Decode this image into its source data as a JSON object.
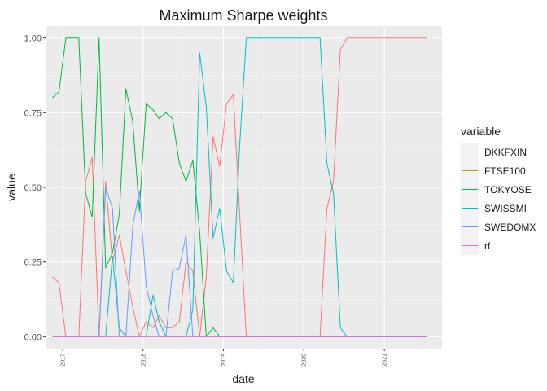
{
  "chart_data": {
    "type": "line",
    "title": "Maximum Sharpe weights",
    "xlabel": "date",
    "ylabel": "value",
    "xlim": [
      "2016-10-15",
      "2021-09-20"
    ],
    "ylim": [
      -0.04,
      1.04
    ],
    "x_ticks": [
      {
        "date": "2017-01-01",
        "label": "2017"
      },
      {
        "date": "2018-01-01",
        "label": "2018"
      },
      {
        "date": "2019-01-01",
        "label": "2019"
      },
      {
        "date": "2020-01-01",
        "label": "2020"
      },
      {
        "date": "2021-01-01",
        "label": "2021"
      }
    ],
    "y_ticks": [
      {
        "value": 0,
        "label": "0.00"
      },
      {
        "value": 0.25,
        "label": "0.25"
      },
      {
        "value": 0.5,
        "label": "0.50"
      },
      {
        "value": 0.75,
        "label": "0.75"
      },
      {
        "value": 1,
        "label": "1.00"
      }
    ],
    "grid": true,
    "panel_background": "#ebebeb",
    "legend": {
      "title": "variable",
      "placement": "right"
    },
    "series": [
      {
        "name": "DKKFXIN",
        "color": "#F8766D",
        "points": [
          [
            "2016-11-15",
            0.2
          ],
          [
            "2016-12-15",
            0.18
          ],
          [
            "2017-01-15",
            0.0
          ],
          [
            "2017-02-15",
            0.0
          ],
          [
            "2017-03-15",
            0.0
          ],
          [
            "2017-04-15",
            0.52
          ],
          [
            "2017-05-15",
            0.6
          ],
          [
            "2017-06-15",
            0.0
          ],
          [
            "2017-07-15",
            0.52
          ],
          [
            "2017-08-15",
            0.25
          ],
          [
            "2017-09-15",
            0.34
          ],
          [
            "2017-10-15",
            0.22
          ],
          [
            "2017-11-15",
            0.1
          ],
          [
            "2017-12-15",
            0.0
          ],
          [
            "2018-01-15",
            0.05
          ],
          [
            "2018-02-15",
            0.03
          ],
          [
            "2018-03-15",
            0.07
          ],
          [
            "2018-04-15",
            0.03
          ],
          [
            "2018-05-15",
            0.03
          ],
          [
            "2018-06-15",
            0.05
          ],
          [
            "2018-07-15",
            0.25
          ],
          [
            "2018-08-15",
            0.22
          ],
          [
            "2018-09-15",
            0.0
          ],
          [
            "2018-10-15",
            0.2
          ],
          [
            "2018-11-15",
            0.67
          ],
          [
            "2018-12-15",
            0.57
          ],
          [
            "2019-01-15",
            0.78
          ],
          [
            "2019-02-15",
            0.81
          ],
          [
            "2019-03-15",
            0.42
          ],
          [
            "2019-04-15",
            0.0
          ],
          [
            "2019-05-15",
            0.0
          ],
          [
            "2020-01-15",
            0.0
          ],
          [
            "2020-03-15",
            0.0
          ],
          [
            "2020-04-15",
            0.43
          ],
          [
            "2020-05-15",
            0.52
          ],
          [
            "2020-06-15",
            0.96
          ],
          [
            "2020-07-15",
            1.0
          ],
          [
            "2021-07-15",
            1.0
          ]
        ]
      },
      {
        "name": "FTSE100",
        "color": "#B79F00",
        "points": [
          [
            "2016-11-15",
            0.0
          ],
          [
            "2021-07-15",
            0.0
          ]
        ]
      },
      {
        "name": "TOKYOSE",
        "color": "#00BA38",
        "points": [
          [
            "2016-11-15",
            0.8
          ],
          [
            "2016-12-15",
            0.82
          ],
          [
            "2017-01-15",
            1.0
          ],
          [
            "2017-02-15",
            1.0
          ],
          [
            "2017-03-15",
            1.0
          ],
          [
            "2017-04-15",
            0.48
          ],
          [
            "2017-05-15",
            0.4
          ],
          [
            "2017-06-15",
            1.0
          ],
          [
            "2017-07-15",
            0.23
          ],
          [
            "2017-08-15",
            0.28
          ],
          [
            "2017-09-15",
            0.41
          ],
          [
            "2017-10-15",
            0.83
          ],
          [
            "2017-11-15",
            0.72
          ],
          [
            "2017-12-15",
            0.42
          ],
          [
            "2018-01-15",
            0.78
          ],
          [
            "2018-02-15",
            0.76
          ],
          [
            "2018-03-15",
            0.73
          ],
          [
            "2018-04-15",
            0.75
          ],
          [
            "2018-05-15",
            0.73
          ],
          [
            "2018-06-15",
            0.58
          ],
          [
            "2018-07-15",
            0.52
          ],
          [
            "2018-08-15",
            0.59
          ],
          [
            "2018-09-15",
            0.35
          ],
          [
            "2018-10-15",
            0.0
          ],
          [
            "2018-11-15",
            0.03
          ],
          [
            "2018-12-15",
            0.0
          ],
          [
            "2021-07-15",
            0.0
          ]
        ]
      },
      {
        "name": "SWISSMI",
        "color": "#00BFC4",
        "points": [
          [
            "2016-11-15",
            0.0
          ],
          [
            "2017-07-15",
            0.0
          ],
          [
            "2017-08-15",
            0.27
          ],
          [
            "2017-09-15",
            0.03
          ],
          [
            "2017-10-15",
            0.0
          ],
          [
            "2018-01-15",
            0.0
          ],
          [
            "2018-02-15",
            0.14
          ],
          [
            "2018-03-15",
            0.05
          ],
          [
            "2018-04-15",
            0.0
          ],
          [
            "2018-07-15",
            0.0
          ],
          [
            "2018-08-15",
            0.09
          ],
          [
            "2018-09-15",
            0.95
          ],
          [
            "2018-10-15",
            0.77
          ],
          [
            "2018-11-15",
            0.33
          ],
          [
            "2018-12-15",
            0.43
          ],
          [
            "2019-01-15",
            0.22
          ],
          [
            "2019-02-15",
            0.18
          ],
          [
            "2019-03-15",
            0.63
          ],
          [
            "2019-04-15",
            1.0
          ],
          [
            "2020-03-15",
            1.0
          ],
          [
            "2020-04-15",
            0.58
          ],
          [
            "2020-05-15",
            0.48
          ],
          [
            "2020-06-15",
            0.03
          ],
          [
            "2020-07-15",
            0.0
          ],
          [
            "2021-07-15",
            0.0
          ]
        ]
      },
      {
        "name": "SWEDOMX",
        "color": "#619CFF",
        "points": [
          [
            "2016-11-15",
            0.0
          ],
          [
            "2017-06-15",
            0.0
          ],
          [
            "2017-07-15",
            0.5
          ],
          [
            "2017-08-15",
            0.43
          ],
          [
            "2017-09-15",
            0.0
          ],
          [
            "2017-10-15",
            0.0
          ],
          [
            "2017-11-15",
            0.37
          ],
          [
            "2017-12-15",
            0.49
          ],
          [
            "2018-01-15",
            0.17
          ],
          [
            "2018-02-15",
            0.07
          ],
          [
            "2018-03-15",
            0.0
          ],
          [
            "2018-04-15",
            0.0
          ],
          [
            "2018-05-15",
            0.22
          ],
          [
            "2018-06-15",
            0.23
          ],
          [
            "2018-07-15",
            0.34
          ],
          [
            "2018-08-15",
            0.0
          ],
          [
            "2018-09-15",
            0.0
          ],
          [
            "2018-10-15",
            0.0
          ],
          [
            "2021-07-15",
            0.0
          ]
        ]
      },
      {
        "name": "rf",
        "color": "#F564E3",
        "points": [
          [
            "2016-11-15",
            0.0
          ],
          [
            "2021-07-15",
            0.0
          ]
        ]
      }
    ]
  }
}
